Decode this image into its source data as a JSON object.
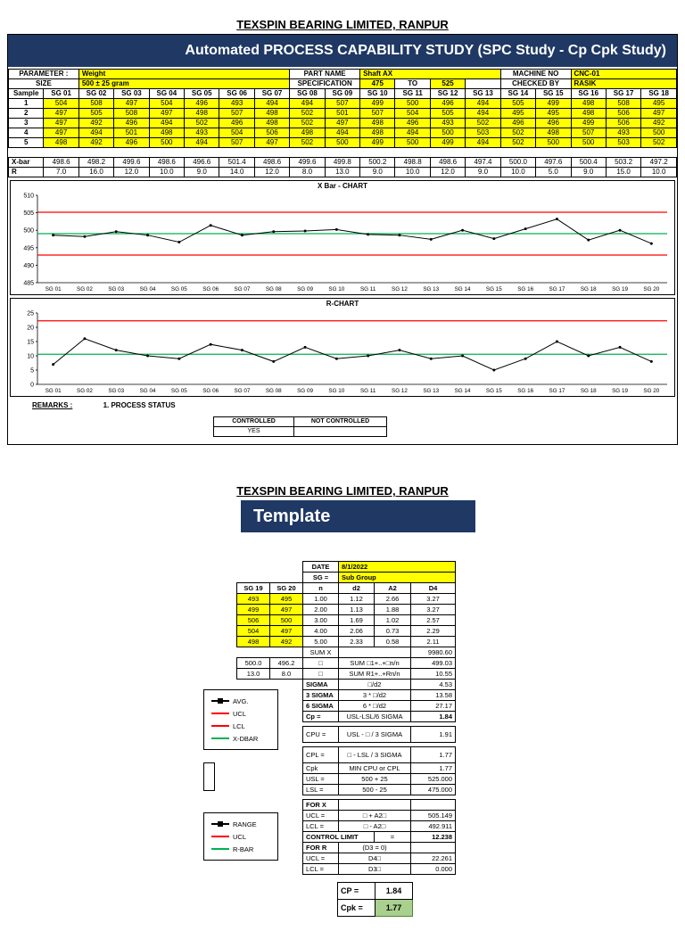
{
  "colors": {
    "banner_navy": "#1F3864",
    "input_yellow": "#FFFF00",
    "control_line_red": "#FF0000",
    "center_line_green": "#00B050",
    "cpk_result_green": "#A9D08E"
  },
  "page1": {
    "heading": "TEXSPIN BEARING LIMITED, RANPUR",
    "banner": "Automated PROCESS CAPABILITY STUDY (SPC Study - Cp Cpk Study)",
    "info": {
      "parameter_label": "PARAMETER :",
      "parameter_value": "Weight",
      "size_label": "SIZE",
      "size_value": "500 ± 25 gram",
      "part_name_label": "PART NAME",
      "part_name_value": "Shaft AX",
      "specification_label": "SPECIFICATION",
      "spec_lsl": "475",
      "spec_to": "TO",
      "spec_usl": "525",
      "machine_label": "MACHINE NO",
      "machine_value": "CNC-01",
      "checked_label": "CHECKED BY",
      "checked_value": "RASIK"
    },
    "grid": {
      "sample_label": "Sample",
      "group_headers": [
        "SG 01",
        "SG 02",
        "SG 03",
        "SG 04",
        "SG 05",
        "SG 06",
        "SG 07",
        "SG 08",
        "SG 09",
        "SG 10",
        "SG 11",
        "SG 12",
        "SG 13",
        "SG 14",
        "SG 15",
        "SG 16",
        "SG 17",
        "SG 18"
      ],
      "sample_rows": [
        {
          "label": "1",
          "values": [
            "504",
            "508",
            "497",
            "504",
            "496",
            "493",
            "494",
            "494",
            "507",
            "499",
            "500",
            "496",
            "494",
            "505",
            "499",
            "498",
            "508",
            "495"
          ]
        },
        {
          "label": "2",
          "values": [
            "497",
            "505",
            "508",
            "497",
            "498",
            "507",
            "498",
            "502",
            "501",
            "507",
            "504",
            "505",
            "494",
            "495",
            "495",
            "498",
            "506",
            "497"
          ]
        },
        {
          "label": "3",
          "values": [
            "497",
            "492",
            "496",
            "494",
            "502",
            "496",
            "498",
            "502",
            "497",
            "498",
            "496",
            "493",
            "502",
            "496",
            "496",
            "499",
            "506",
            "492"
          ]
        },
        {
          "label": "4",
          "values": [
            "497",
            "494",
            "501",
            "498",
            "493",
            "504",
            "506",
            "498",
            "494",
            "498",
            "494",
            "500",
            "503",
            "502",
            "498",
            "507",
            "493",
            "500"
          ]
        },
        {
          "label": "5",
          "values": [
            "498",
            "492",
            "496",
            "500",
            "494",
            "507",
            "497",
            "502",
            "500",
            "499",
            "500",
            "499",
            "494",
            "502",
            "500",
            "500",
            "503",
            "502"
          ]
        }
      ],
      "xbar_label": "X-bar",
      "xbar_values": [
        "498.6",
        "498.2",
        "499.6",
        "498.6",
        "496.6",
        "501.4",
        "498.6",
        "499.6",
        "499.8",
        "500.2",
        "498.8",
        "498.6",
        "497.4",
        "500.0",
        "497.6",
        "500.4",
        "503.2",
        "497.2"
      ],
      "r_label": "R",
      "r_values": [
        "7.0",
        "16.0",
        "12.0",
        "10.0",
        "9.0",
        "14.0",
        "12.0",
        "8.0",
        "13.0",
        "9.0",
        "10.0",
        "12.0",
        "9.0",
        "10.0",
        "5.0",
        "9.0",
        "15.0",
        "10.0"
      ]
    },
    "remarks_label": "REMARKS :",
    "remarks_text": "1. PROCESS STATUS",
    "status": {
      "controlled_label": "CONTROLLED",
      "not_controlled_label": "NOT CONTROLLED",
      "result": "YES"
    }
  },
  "chart_data": [
    {
      "type": "line",
      "title": "X Bar - CHART",
      "categories": [
        "SG 01",
        "SG 02",
        "SG 03",
        "SG 04",
        "SG 05",
        "SG 06",
        "SG 07",
        "SG 08",
        "SG 09",
        "SG 10",
        "SG 11",
        "SG 12",
        "SG 13",
        "SG 14",
        "SG 15",
        "SG 16",
        "SG 17",
        "SG 18",
        "SG 19",
        "SG 20"
      ],
      "series": [
        {
          "name": "AVG.",
          "color": "#000000",
          "values": [
            498.6,
            498.2,
            499.6,
            498.6,
            496.6,
            501.4,
            498.6,
            499.6,
            499.8,
            500.2,
            498.8,
            498.6,
            497.4,
            500.0,
            497.6,
            500.4,
            503.2,
            497.2,
            500.0,
            496.2
          ]
        }
      ],
      "ref_lines": [
        {
          "name": "UCL",
          "value": 505.149,
          "color": "#FF0000"
        },
        {
          "name": "LCL",
          "value": 492.911,
          "color": "#FF0000"
        },
        {
          "name": "X-DBAR",
          "value": 499.03,
          "color": "#00B050"
        }
      ],
      "ylim": [
        485,
        510
      ],
      "ytick_step": 5,
      "xlabel": "",
      "ylabel": "",
      "grid": false,
      "legend": "right"
    },
    {
      "type": "line",
      "title": "R-CHART",
      "categories": [
        "SG 01",
        "SG 02",
        "SG 03",
        "SG 04",
        "SG 05",
        "SG 06",
        "SG 07",
        "SG 08",
        "SG 09",
        "SG 10",
        "SG 11",
        "SG 12",
        "SG 13",
        "SG 14",
        "SG 15",
        "SG 16",
        "SG 17",
        "SG 18",
        "SG 19",
        "SG 20"
      ],
      "series": [
        {
          "name": "RANGE",
          "color": "#000000",
          "values": [
            7,
            16,
            12,
            10,
            9,
            14,
            12,
            8,
            13,
            9,
            10,
            12,
            9,
            10,
            5,
            9,
            15,
            10,
            13,
            8
          ]
        }
      ],
      "ref_lines": [
        {
          "name": "UCL",
          "value": 22.261,
          "color": "#FF0000"
        },
        {
          "name": "R-BAR",
          "value": 10.55,
          "color": "#00B050"
        }
      ],
      "ylim": [
        0,
        25
      ],
      "ytick_step": 5,
      "xlabel": "",
      "ylabel": "",
      "grid": false,
      "legend": "right"
    }
  ],
  "page2": {
    "heading": "TEXSPIN BEARING LIMITED, RANPUR",
    "banner": "Template",
    "calc": {
      "date_label": "DATE",
      "date_value": "8/1/2022",
      "sg_label": "SG =",
      "sg_value": "Sub Group",
      "sg19_header": "SG 19",
      "sg20_header": "SG 20",
      "sg19_values": [
        "493",
        "499",
        "506",
        "504",
        "498"
      ],
      "sg20_values": [
        "495",
        "497",
        "500",
        "497",
        "492"
      ],
      "sg19_xbar": "500.0",
      "sg20_xbar": "496.2",
      "sg19_r": "13.0",
      "sg20_r": "8.0",
      "const_headers": [
        "n",
        "d2",
        "A2",
        "D4"
      ],
      "const_rows": [
        [
          "1.00",
          "1.12",
          "2.66",
          "3.27"
        ],
        [
          "2.00",
          "1.13",
          "1.88",
          "3.27"
        ],
        [
          "3.00",
          "1.69",
          "1.02",
          "2.57"
        ],
        [
          "4.00",
          "2.06",
          "0.73",
          "2.29"
        ],
        [
          "5.00",
          "2.33",
          "0.58",
          "2.11"
        ]
      ],
      "sum_x_label": "SUM X",
      "sum_x_value": "9980.60",
      "xbar_label": "□",
      "xbar_formula": "SUM □1+..+□n/n",
      "xbar_value": "499.03",
      "rbar_label": "□",
      "rbar_formula": "SUM R1+..+Rn/n",
      "rbar_value": "10.55",
      "sigma_label": "SIGMA",
      "sigma_formula": "□/d2",
      "sigma_value": "4.53",
      "sigma3_label": "3 SIGMA",
      "sigma3_formula": "3 * □/d2",
      "sigma3_value": "13.58",
      "sigma6_label": "6 SIGMA",
      "sigma6_formula": "6 * □/d2",
      "sigma6_value": "27.17",
      "cp_label": "Cp =",
      "cp_formula": "USL-LSL/6 SIGMA",
      "cp_value": "1.84",
      "cpu_label": "CPU =",
      "cpu_formula": "USL - □ / 3 SIGMA",
      "cpu_value": "1.91",
      "cpl_label": "CPL =",
      "cpl_formula": "□ - LSL / 3 SIGMA",
      "cpl_value": "1.77",
      "cpk_label": "Cpk",
      "cpk_formula": "MIN CPU or CPL",
      "cpk_value": "1.77",
      "usl_label": "USL =",
      "usl_formula": "500 + 25",
      "usl_value": "525.000",
      "lsl_label": "LSL =",
      "lsl_formula": "500 - 25",
      "lsl_value": "475.000",
      "for_x_label": "FOR X",
      "ucl_x_label": "UCL =",
      "ucl_x_formula": "□ + A2□",
      "ucl_x_value": "505.149",
      "lcl_x_label": "LCL =",
      "lcl_x_formula": "□ - A2□",
      "lcl_x_value": "492.911",
      "control_limit_label": "CONTROL LIMIT",
      "control_limit_eq": "=",
      "control_limit_value": "12.238",
      "for_r_label": "FOR R",
      "for_r_note": "(D3 = 0)",
      "ucl_r_label": "UCL =",
      "ucl_r_formula": "D4□",
      "ucl_r_value": "22.261",
      "lcl_r_label": "LCL =",
      "lcl_r_formula": "D3□",
      "lcl_r_value": "0.000",
      "cp_result_label": "CP =",
      "cp_result_value": "1.84",
      "cpk_result_label": "Cpk =",
      "cpk_result_value": "1.77"
    }
  }
}
